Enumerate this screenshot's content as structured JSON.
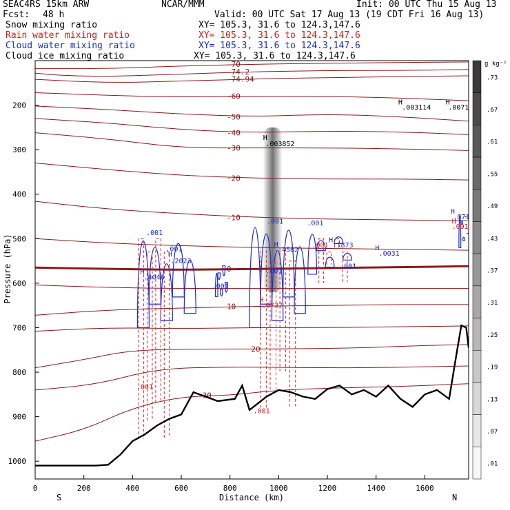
{
  "header": {
    "model": "SEAC4RS 15km ARW",
    "center": "NCAR/MMM",
    "init": "Init: 00 UTC Thu 15 Aug 13",
    "fcst_label": "Fcst:",
    "fcst_value": "48 h",
    "valid": "Valid: 00 UTC Sat 17 Aug 13 (19 CDT Fri 16 Aug 13)"
  },
  "fields": [
    {
      "name": "Snow mixing ratio",
      "xy": "XY= 105.3, 31.6 to 124.3,147.6",
      "color": "#000000"
    },
    {
      "name": "Rain water mixing ratio",
      "xy": "XY= 105.3, 31.6 to 124.3,147.6",
      "color": "#d41a1a"
    },
    {
      "name": "Cloud water mixing ratio",
      "xy": "XY= 105.3, 31.6 to 124.3,147.6",
      "color": "#1a2bd4"
    },
    {
      "name": "Cloud ice mixing ratio",
      "xy": "XY= 105.3, 31.6 to 124.3,147.6",
      "color": "#000000"
    }
  ],
  "chart_data": {
    "type": "contour-cross-section",
    "xlabel": "Distance (km)",
    "ylabel": "Pressure (hPa)",
    "xlim": [
      0,
      1780
    ],
    "ylim": [
      1040,
      100
    ],
    "x_ticks": [
      0,
      200,
      400,
      600,
      800,
      1000,
      1200,
      1400,
      1600
    ],
    "y_ticks": [
      200,
      300,
      400,
      500,
      600,
      700,
      800,
      900,
      1000
    ],
    "x_tick_labels": [
      "0",
      "200",
      "400",
      "600",
      "800",
      "1000",
      "1200",
      "1400",
      "1600"
    ],
    "y_tick_labels": [
      "200",
      "300",
      "400",
      "500",
      "600",
      "700",
      "800",
      "900",
      "1000"
    ],
    "endpoints": {
      "left": "S",
      "right": "N"
    },
    "colorbar": {
      "units": "g kg⁻¹",
      "labels": [
        ".73",
        ".67",
        ".61",
        ".55",
        ".49",
        ".43",
        ".37",
        ".31",
        ".25",
        ".19",
        ".13",
        ".07",
        ".01"
      ],
      "values": [
        0.73,
        0.67,
        0.61,
        0.55,
        0.49,
        0.43,
        0.37,
        0.31,
        0.25,
        0.19,
        0.13,
        0.07,
        0.01
      ]
    },
    "temperature_contours": [
      {
        "label": "-70",
        "points": [
          [
            0,
            118
          ],
          [
            300,
            118
          ],
          [
            600,
            112
          ],
          [
            900,
            108
          ],
          [
            1200,
            106
          ],
          [
            1500,
            104
          ],
          [
            1780,
            103
          ]
        ]
      },
      {
        "label": "-74.2",
        "points": [
          [
            0,
            128
          ],
          [
            100,
            133
          ],
          [
            300,
            136
          ],
          [
            600,
            130
          ],
          [
            900,
            125
          ],
          [
            1200,
            122
          ],
          [
            1500,
            122
          ],
          [
            1780,
            120
          ]
        ]
      },
      {
        "label": "-74.94",
        "points": [
          [
            0,
            142
          ],
          [
            300,
            150
          ],
          [
            600,
            146
          ],
          [
            900,
            141
          ],
          [
            1200,
            138
          ],
          [
            1500,
            136
          ],
          [
            1780,
            134
          ]
        ]
      },
      {
        "label": "-60",
        "points": [
          [
            0,
            172
          ],
          [
            300,
            178
          ],
          [
            600,
            182
          ],
          [
            900,
            180
          ],
          [
            1200,
            180
          ],
          [
            1500,
            184
          ],
          [
            1780,
            190
          ]
        ]
      },
      {
        "label": "-50",
        "points": [
          [
            0,
            202
          ],
          [
            300,
            210
          ],
          [
            600,
            220
          ],
          [
            900,
            226
          ],
          [
            1200,
            220
          ],
          [
            1500,
            226
          ],
          [
            1780,
            236
          ]
        ]
      },
      {
        "label": "-40",
        "points": [
          [
            0,
            230
          ],
          [
            300,
            240
          ],
          [
            600,
            255
          ],
          [
            900,
            262
          ],
          [
            1200,
            258
          ],
          [
            1500,
            260
          ],
          [
            1780,
            266
          ]
        ]
      },
      {
        "label": "-30",
        "points": [
          [
            0,
            262
          ],
          [
            300,
            276
          ],
          [
            600,
            296
          ],
          [
            900,
            296
          ],
          [
            1200,
            296
          ],
          [
            1500,
            298
          ],
          [
            1780,
            302
          ]
        ]
      },
      {
        "label": "-20",
        "points": [
          [
            0,
            330
          ],
          [
            300,
            345
          ],
          [
            600,
            358
          ],
          [
            900,
            364
          ],
          [
            1200,
            366
          ],
          [
            1500,
            366
          ],
          [
            1780,
            368
          ]
        ]
      },
      {
        "label": "-10",
        "points": [
          [
            0,
            416
          ],
          [
            300,
            434
          ],
          [
            600,
            444
          ],
          [
            900,
            452
          ],
          [
            1200,
            456
          ],
          [
            1500,
            458
          ],
          [
            1780,
            460
          ]
        ]
      },
      {
        "label": "",
        "points": [
          [
            0,
            500
          ],
          [
            300,
            510
          ],
          [
            600,
            516
          ],
          [
            900,
            520
          ],
          [
            1200,
            522
          ],
          [
            1500,
            524
          ],
          [
            1780,
            526
          ]
        ]
      },
      {
        "label": "0",
        "points": [
          [
            0,
            565
          ],
          [
            300,
            568
          ],
          [
            600,
            570
          ],
          [
            900,
            568
          ],
          [
            1200,
            566
          ],
          [
            1500,
            564
          ],
          [
            1780,
            562
          ]
        ],
        "bold": true
      },
      {
        "label": "",
        "points": [
          [
            0,
            604
          ],
          [
            300,
            610
          ],
          [
            600,
            612
          ],
          [
            900,
            612
          ],
          [
            1200,
            612
          ],
          [
            1500,
            612
          ],
          [
            1780,
            612
          ]
        ]
      },
      {
        "label": "10",
        "points": [
          [
            0,
            672
          ],
          [
            300,
            660
          ],
          [
            600,
            656
          ],
          [
            900,
            652
          ],
          [
            1200,
            650
          ],
          [
            1500,
            648
          ],
          [
            1780,
            648
          ]
        ]
      },
      {
        "label": "",
        "points": [
          [
            0,
            708
          ],
          [
            300,
            700
          ],
          [
            600,
            702
          ],
          [
            900,
            700
          ],
          [
            1200,
            700
          ],
          [
            1500,
            698
          ],
          [
            1780,
            696
          ]
        ]
      },
      {
        "label": "20",
        "points": [
          [
            0,
            790
          ],
          [
            200,
            772
          ],
          [
            400,
            750
          ],
          [
            700,
            748
          ],
          [
            1000,
            748
          ],
          [
            1300,
            746
          ],
          [
            1600,
            740
          ],
          [
            1780,
            738
          ]
        ]
      },
      {
        "label": "",
        "points": [
          [
            0,
            840
          ],
          [
            250,
            828
          ],
          [
            500,
            792
          ],
          [
            800,
            788
          ],
          [
            1100,
            790
          ],
          [
            1400,
            790
          ],
          [
            1780,
            786
          ]
        ]
      },
      {
        "label": "30",
        "points": [
          [
            0,
            955
          ],
          [
            200,
            930
          ],
          [
            400,
            880
          ],
          [
            600,
            855
          ],
          [
            800,
            852
          ],
          [
            1000,
            840
          ],
          [
            1200,
            836
          ],
          [
            1500,
            832
          ],
          [
            1780,
            826
          ]
        ]
      }
    ],
    "terrain": [
      [
        0,
        1010
      ],
      [
        250,
        1010
      ],
      [
        300,
        1008
      ],
      [
        350,
        985
      ],
      [
        400,
        955
      ],
      [
        450,
        940
      ],
      [
        500,
        920
      ],
      [
        550,
        905
      ],
      [
        600,
        895
      ],
      [
        650,
        845
      ],
      [
        700,
        855
      ],
      [
        750,
        865
      ],
      [
        820,
        860
      ],
      [
        850,
        830
      ],
      [
        880,
        885
      ],
      [
        950,
        855
      ],
      [
        1000,
        840
      ],
      [
        1050,
        845
      ],
      [
        1100,
        855
      ],
      [
        1150,
        860
      ],
      [
        1200,
        838
      ],
      [
        1250,
        830
      ],
      [
        1300,
        850
      ],
      [
        1350,
        840
      ],
      [
        1400,
        855
      ],
      [
        1450,
        830
      ],
      [
        1500,
        860
      ],
      [
        1550,
        878
      ],
      [
        1600,
        850
      ],
      [
        1650,
        840
      ],
      [
        1700,
        860
      ],
      [
        1730,
        760
      ],
      [
        1750,
        695
      ],
      [
        1770,
        700
      ],
      [
        1780,
        745
      ]
    ],
    "snow_max": {
      "label": ".003852",
      "x": 975,
      "p": 290
    },
    "annotations": [
      {
        "text": "H",
        "x": 970,
        "p": 278,
        "color": "#000000"
      },
      {
        "text": ".003852",
        "x": 980,
        "p": 292,
        "color": "#000000"
      },
      {
        "text": "H",
        "x": 1525,
        "p": 198,
        "color": "#000000"
      },
      {
        "text": ".003114",
        "x": 1540,
        "p": 210,
        "color": "#000000"
      },
      {
        "text": "H",
        "x": 1720,
        "p": 198,
        "color": "#000000"
      },
      {
        "text": ".0071",
        "x": 1730,
        "p": 210,
        "color": "#000000"
      },
      {
        "text": ".001",
        "x": 490,
        "p": 492,
        "color": "#1a2bd4"
      },
      {
        "text": ".001",
        "x": 570,
        "p": 528,
        "color": "#1a2bd4"
      },
      {
        "text": "H",
        "x": 580,
        "p": 540,
        "color": "#1a2bd4"
      },
      {
        "text": ".2023",
        "x": 590,
        "p": 555,
        "color": "#1a2bd4"
      },
      {
        "text": "H",
        "x": 465,
        "p": 580,
        "color": "#1a2bd4"
      },
      {
        "text": ".4046",
        "x": 480,
        "p": 592,
        "color": "#1a2bd4"
      },
      {
        "text": ".001",
        "x": 760,
        "p": 612,
        "color": "#1a2bd4"
      },
      {
        "text": ".001",
        "x": 985,
        "p": 466,
        "color": "#1a2bd4"
      },
      {
        "text": "H",
        "x": 1015,
        "p": 518,
        "color": "#1a2bd4"
      },
      {
        "text": ".4582",
        "x": 1030,
        "p": 530,
        "color": "#1a2bd4"
      },
      {
        "text": ".001",
        "x": 980,
        "p": 578,
        "color": "#1a2bd4"
      },
      {
        "text": ".001",
        "x": 1150,
        "p": 470,
        "color": "#1a2bd4"
      },
      {
        "text": "H",
        "x": 1240,
        "p": 508,
        "color": "#1a2bd4"
      },
      {
        "text": ".1873",
        "x": 1255,
        "p": 520,
        "color": "#1a2bd4"
      },
      {
        "text": ".001",
        "x": 1285,
        "p": 567,
        "color": "#1a2bd4"
      },
      {
        "text": "H",
        "x": 1430,
        "p": 526,
        "color": "#1a2bd4"
      },
      {
        "text": ".0031",
        "x": 1445,
        "p": 538,
        "color": "#1a2bd4"
      },
      {
        "text": "H",
        "x": 1740,
        "p": 444,
        "color": "#1a2bd4"
      },
      {
        "text": ".071",
        "x": 1750,
        "p": 456,
        "color": "#1a2bd4"
      },
      {
        "text": "H",
        "x": 955,
        "p": 643,
        "color": "#d41a1a"
      },
      {
        "text": ".0737",
        "x": 965,
        "p": 655,
        "color": "#d41a1a"
      },
      {
        "text": ".001",
        "x": 1170,
        "p": 520,
        "color": "#d41a1a"
      },
      {
        "text": ".001",
        "x": 450,
        "p": 838,
        "color": "#d41a1a"
      },
      {
        "text": ".001",
        "x": 930,
        "p": 892,
        "color": "#d41a1a"
      },
      {
        "text": ".001",
        "x": 1745,
        "p": 478,
        "color": "#d41a1a"
      },
      {
        "text": "H",
        "x": 1745,
        "p": 466,
        "color": "#d41a1a"
      }
    ],
    "cloud_water_regions": [
      {
        "x0": 420,
        "x1": 660,
        "p_top": 440,
        "p_bot": 700
      },
      {
        "x0": 740,
        "x1": 790,
        "p_top": 560,
        "p_bot": 630
      },
      {
        "x0": 880,
        "x1": 1110,
        "p_top": 400,
        "p_bot": 700
      },
      {
        "x0": 1120,
        "x1": 1300,
        "p_top": 460,
        "p_bot": 580
      },
      {
        "x0": 1740,
        "x1": 1780,
        "p_top": 420,
        "p_bot": 520
      }
    ],
    "rain_regions": [
      {
        "x0": 420,
        "x1": 560,
        "p_top": 500,
        "p_bot": 950
      },
      {
        "x0": 920,
        "x1": 1080,
        "p_top": 520,
        "p_bot": 880
      },
      {
        "x0": 1160,
        "x1": 1290,
        "p_top": 500,
        "p_bot": 600
      }
    ]
  }
}
